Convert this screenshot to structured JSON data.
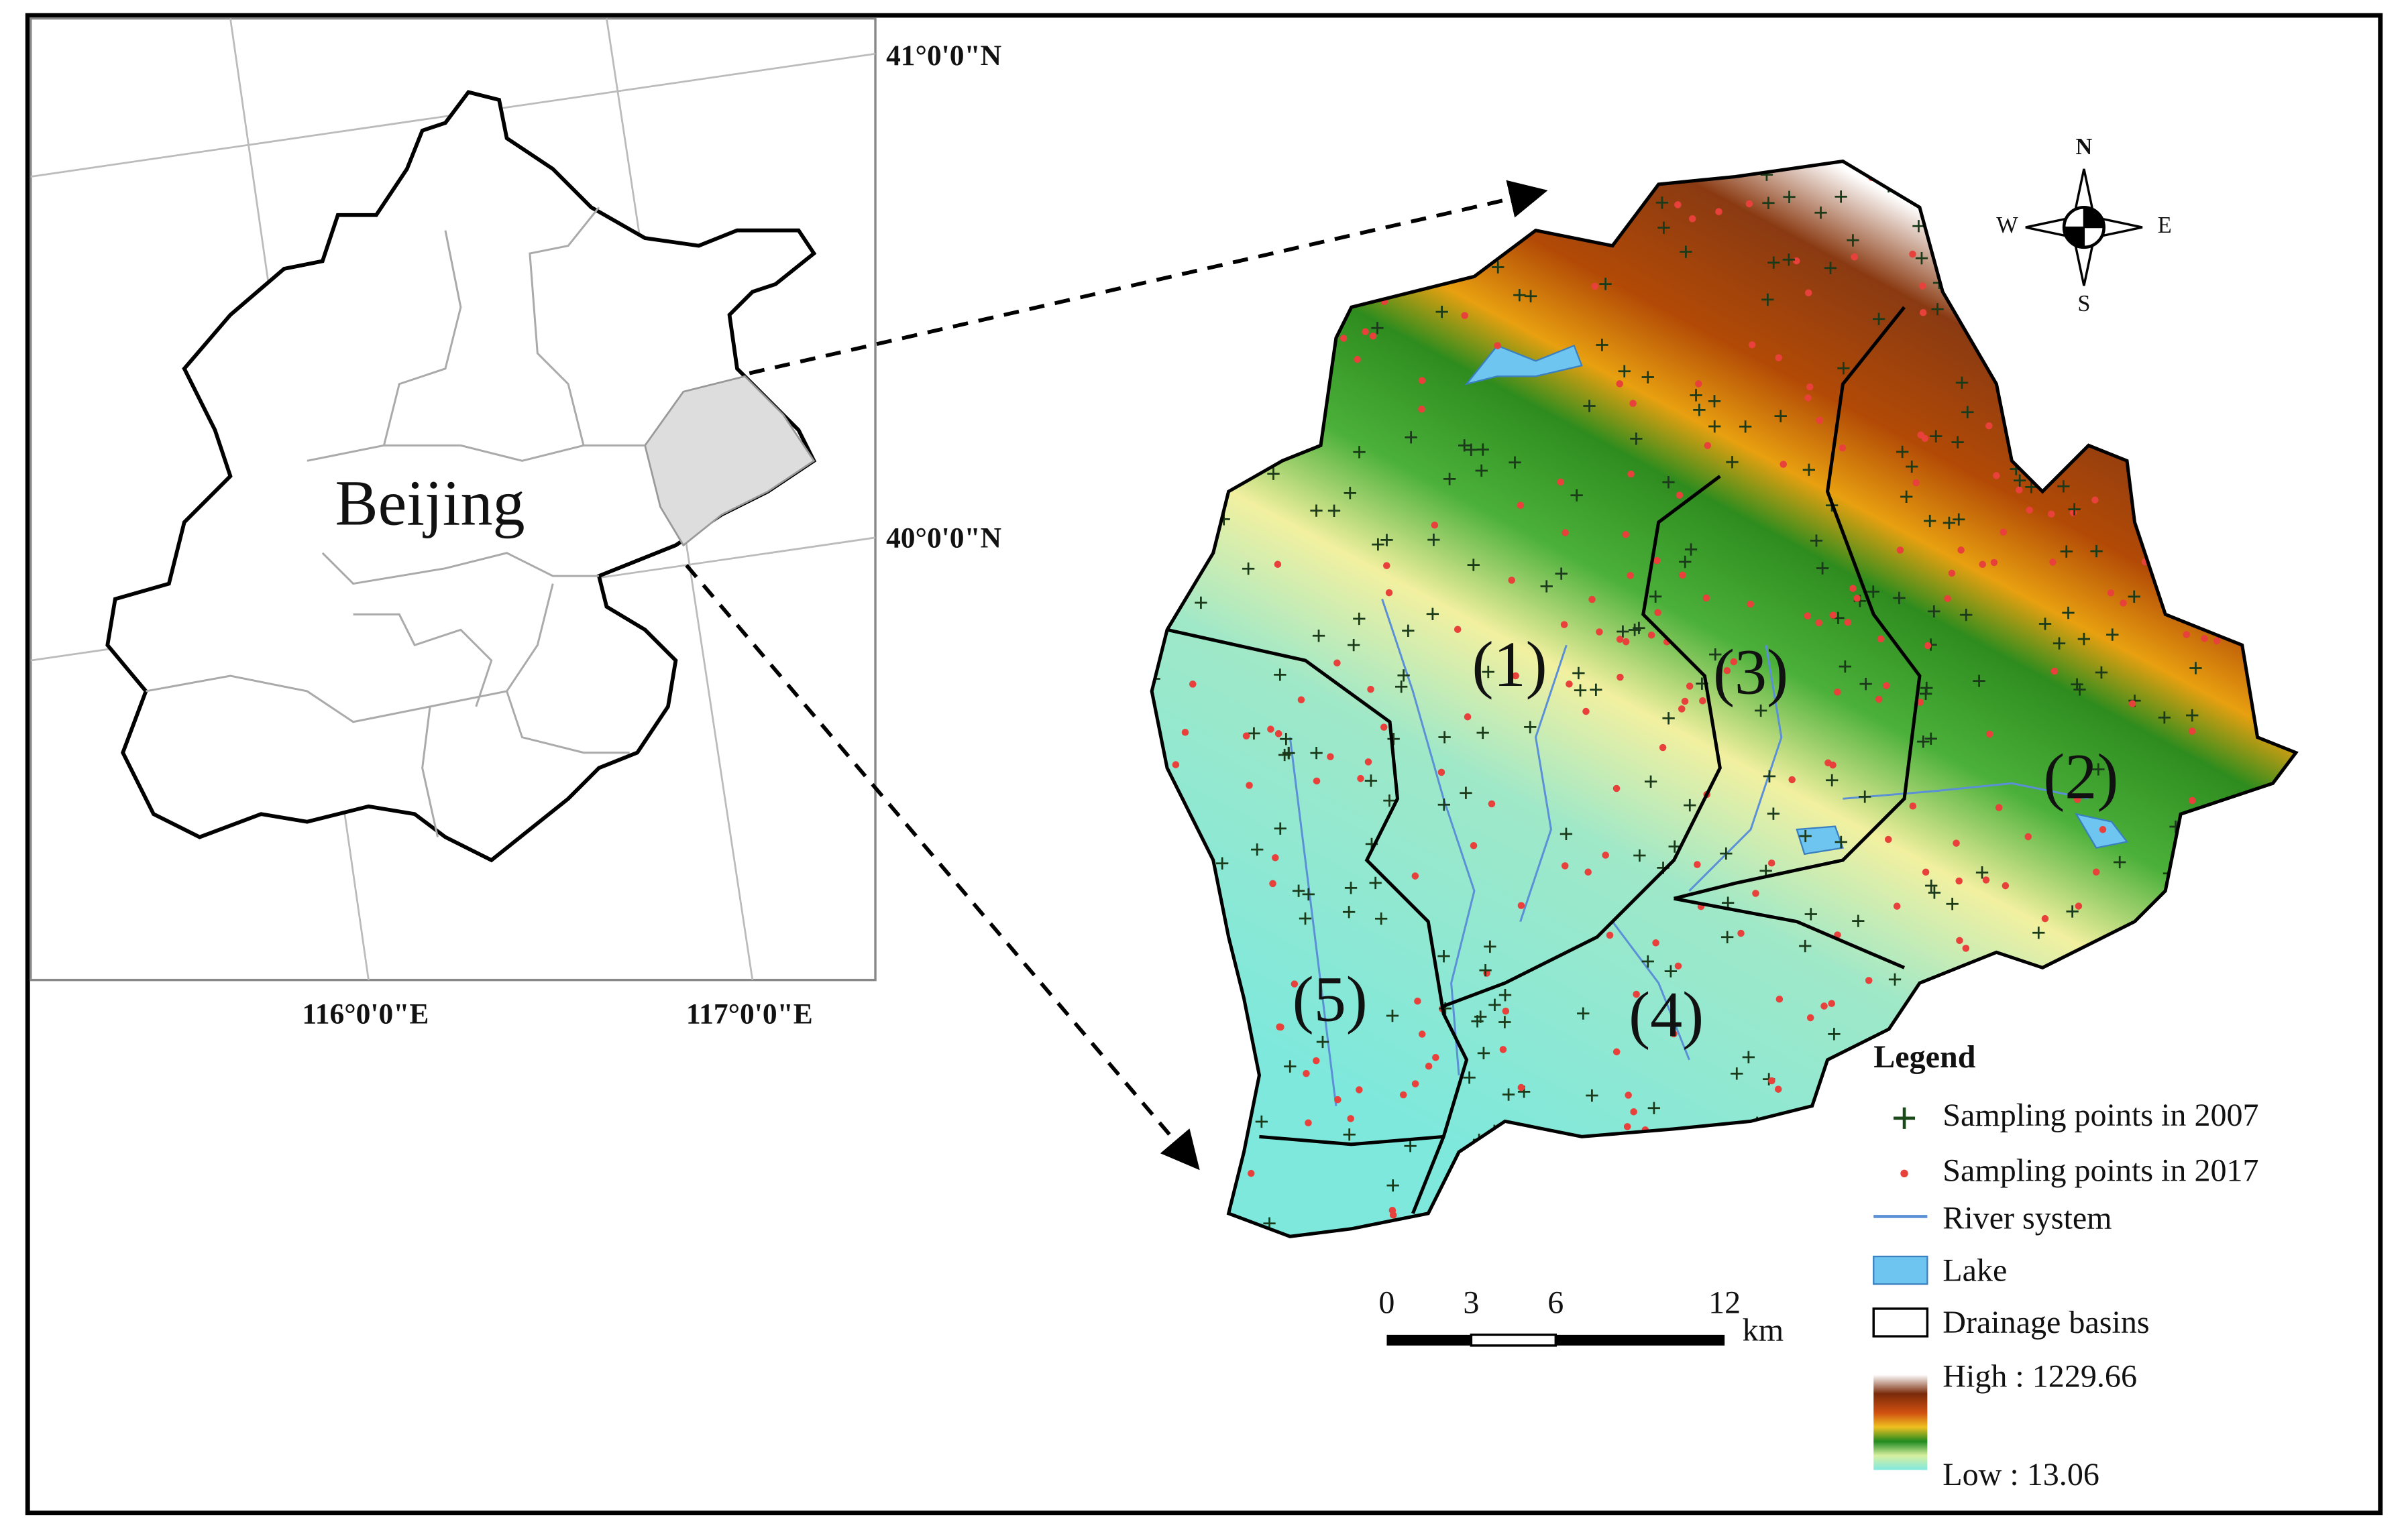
{
  "inset_map": {
    "region_label": "Beijing",
    "lat_labels": [
      "41°0'0\"N",
      "40°0'0\"N"
    ],
    "lon_labels": [
      "116°0'0\"E",
      "117°0'0\"E"
    ]
  },
  "study_area": {
    "basin_labels": [
      "(1)",
      "(2)",
      "(3)",
      "(4)",
      "(5)"
    ]
  },
  "compass": {
    "north": "N",
    "south": "S",
    "east": "E",
    "west": "W"
  },
  "scale_bar": {
    "ticks": [
      0,
      3,
      6,
      12
    ],
    "unit": "km"
  },
  "legend": {
    "title": "Legend",
    "items": [
      "Sampling points in 2007",
      "Sampling points in 2017",
      "River system",
      "Lake",
      "Drainage basins"
    ],
    "elevation_high": "High : 1229.66",
    "elevation_low": "Low : 13.06"
  }
}
